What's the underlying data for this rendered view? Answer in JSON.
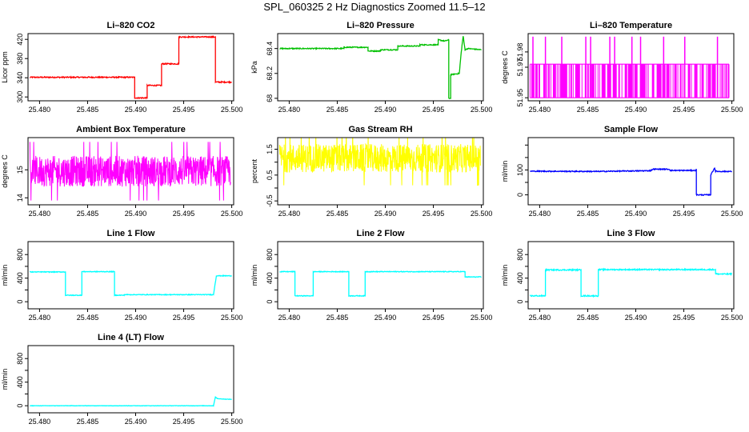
{
  "page": {
    "title": "SPL_060325  2 Hz Diagnostics Zoomed 11.5–12"
  },
  "chart_data": [
    {
      "type": "line",
      "title": "Li–820 CO2",
      "ylabel": "Licor ppm",
      "color": "#ff0000",
      "xlim": [
        25.4788,
        25.5002
      ],
      "ylim": [
        292,
        432
      ],
      "xticks": [
        "25.480",
        "25.485",
        "25.490",
        "25.495",
        "25.500"
      ],
      "yticks": [
        300,
        340,
        380,
        420
      ],
      "series": [
        {
          "x": [
            25.479,
            25.4899,
            25.4899,
            25.4912,
            25.4912,
            25.4927,
            25.4927,
            25.4945,
            25.4945,
            25.4983,
            25.4983,
            25.5
          ],
          "y": [
            341,
            341,
            298,
            298,
            324,
            324,
            369,
            369,
            425,
            425,
            331,
            331
          ]
        }
      ],
      "noise": 1.2
    },
    {
      "type": "line",
      "title": "Li–820 Pressure",
      "ylabel": "kPa",
      "color": "#00c000",
      "xlim": [
        25.4788,
        25.5002
      ],
      "ylim": [
        67.98,
        68.52
      ],
      "xticks": [
        "25.480",
        "25.485",
        "25.490",
        "25.495",
        "25.500"
      ],
      "yticks": [
        68.0,
        68.2,
        68.4
      ],
      "series": [
        {
          "x": [
            25.479,
            25.4857,
            25.4857,
            25.4882,
            25.4882,
            25.4895,
            25.4895,
            25.4913,
            25.4913,
            25.4936,
            25.4936,
            25.4955,
            25.4955,
            25.4962,
            25.4966,
            25.4966,
            25.4968,
            25.4968,
            25.4977,
            25.4979,
            25.4981,
            25.4983,
            25.4986,
            25.5
          ],
          "y": [
            68.4,
            68.4,
            68.41,
            68.41,
            68.38,
            68.38,
            68.39,
            68.39,
            68.42,
            68.42,
            68.43,
            68.43,
            68.47,
            68.46,
            68.47,
            68.0,
            68.0,
            68.19,
            68.2,
            68.37,
            68.5,
            68.39,
            68.4,
            68.39
          ]
        }
      ],
      "noise": 0.004
    },
    {
      "type": "spikes",
      "title": "Li–820 Temperature",
      "ylabel": "degrees C",
      "color": "#ff00ff",
      "xlim": [
        25.4788,
        25.5002
      ],
      "ylim": [
        51.948,
        51.992
      ],
      "xticks": [
        "25.480",
        "25.485",
        "25.490",
        "25.495",
        "25.500"
      ],
      "yticks": [
        51.95,
        51.97,
        51.98
      ],
      "low": 51.95,
      "high": 51.972,
      "top": 51.99,
      "xrange": [
        25.479,
        25.4997
      ],
      "top_spikes": [
        25.4793,
        25.4806,
        25.4823,
        25.4848,
        25.4853,
        25.4873,
        25.4878,
        25.4896,
        25.4905,
        25.4929,
        25.4951,
        25.4985
      ]
    },
    {
      "type": "noise",
      "title": "Ambient Box Temperature",
      "ylabel": "degrees C",
      "color": "#ff00ff",
      "xlim": [
        25.4788,
        25.5002
      ],
      "ylim": [
        13.75,
        16.15
      ],
      "xticks": [
        "25.480",
        "25.485",
        "25.490",
        "25.495",
        "25.500"
      ],
      "yticks": [
        14.0,
        15.0
      ],
      "mean": 14.95,
      "amp": 0.55,
      "xrange": [
        25.479,
        25.4999
      ]
    },
    {
      "type": "noise",
      "title": "Gas Stream RH",
      "ylabel": "percent",
      "color": "#ffff00",
      "xlim": [
        25.4788,
        25.5002
      ],
      "ylim": [
        -0.65,
        1.95
      ],
      "xticks": [
        "25.480",
        "25.485",
        "25.490",
        "25.495",
        "25.500"
      ],
      "yticks": [
        -0.5,
        0.5,
        1.5
      ],
      "yticks_secondary": [
        0.0,
        1.0
      ],
      "mean": 1.15,
      "amp": 0.55,
      "xrange": [
        25.479,
        25.4999
      ]
    },
    {
      "type": "line",
      "title": "Sample Flow",
      "ylabel": "ml/min",
      "color": "#0000ff",
      "xlim": [
        25.4788,
        25.5002
      ],
      "ylim": [
        -40,
        230
      ],
      "xticks": [
        "25.480",
        "25.485",
        "25.490",
        "25.495",
        "25.500"
      ],
      "yticks": [
        0,
        50,
        100,
        150,
        200
      ],
      "yticks_shown": [
        0,
        100
      ],
      "series": [
        {
          "x": [
            25.479,
            25.486,
            25.4915,
            25.4918,
            25.4935,
            25.4936,
            25.4962,
            25.4963,
            25.4963,
            25.4978,
            25.4978,
            25.4982,
            25.4983,
            25.4987,
            25.5
          ],
          "y": [
            95,
            94,
            97,
            103,
            103,
            98,
            98,
            104,
            0,
            0,
            80,
            108,
            95,
            94,
            94
          ]
        }
      ],
      "noise": 2
    },
    {
      "type": "line",
      "title": "Line 1 Flow",
      "ylabel": "ml/min",
      "color": "#00ffff",
      "xlim": [
        25.4788,
        25.5002
      ],
      "ylim": [
        -120,
        1020
      ],
      "xticks": [
        "25.480",
        "25.485",
        "25.490",
        "25.495",
        "25.500"
      ],
      "yticks": [
        0,
        200,
        400,
        600,
        800
      ],
      "yticks_shown": [
        0,
        400,
        800
      ],
      "series": [
        {
          "x": [
            25.479,
            25.4827,
            25.4827,
            25.4844,
            25.4844,
            25.4878,
            25.4878,
            25.4888,
            25.4888,
            25.4981,
            25.4984,
            25.5
          ],
          "y": [
            505,
            505,
            110,
            110,
            510,
            510,
            110,
            110,
            120,
            120,
            440,
            440
          ]
        }
      ],
      "noise": 6
    },
    {
      "type": "line",
      "title": "Line 2 Flow",
      "ylabel": "ml/min",
      "color": "#00ffff",
      "xlim": [
        25.4788,
        25.5002
      ],
      "ylim": [
        -120,
        1020
      ],
      "xticks": [
        "25.480",
        "25.485",
        "25.490",
        "25.495",
        "25.500"
      ],
      "yticks": [
        0,
        200,
        400,
        600,
        800
      ],
      "yticks_shown": [
        0,
        400,
        800
      ],
      "series": [
        {
          "x": [
            25.479,
            25.4806,
            25.4806,
            25.4825,
            25.4825,
            25.4862,
            25.4862,
            25.4879,
            25.4879,
            25.4983,
            25.4983,
            25.5
          ],
          "y": [
            510,
            510,
            100,
            100,
            510,
            510,
            100,
            100,
            510,
            510,
            420,
            420
          ]
        }
      ],
      "noise": 6
    },
    {
      "type": "line",
      "title": "Line 3 Flow",
      "ylabel": "ml/min",
      "color": "#00ffff",
      "xlim": [
        25.4788,
        25.5002
      ],
      "ylim": [
        -120,
        1020
      ],
      "xticks": [
        "25.480",
        "25.485",
        "25.490",
        "25.495",
        "25.500"
      ],
      "yticks": [
        0,
        200,
        400,
        600,
        800
      ],
      "yticks_shown": [
        0,
        400,
        800
      ],
      "series": [
        {
          "x": [
            25.479,
            25.4806,
            25.4806,
            25.4843,
            25.4843,
            25.4861,
            25.4861,
            25.4983,
            25.4983,
            25.5
          ],
          "y": [
            100,
            100,
            540,
            540,
            100,
            100,
            545,
            545,
            470,
            470
          ]
        }
      ],
      "noise": 10
    },
    {
      "type": "line",
      "title": "Line 4 (LT) Flow",
      "ylabel": "ml/min",
      "color": "#00ffff",
      "xlim": [
        25.4788,
        25.5002
      ],
      "ylim": [
        -120,
        1020
      ],
      "xticks": [
        "25.480",
        "25.485",
        "25.490",
        "25.495",
        "25.500"
      ],
      "yticks": [
        0,
        200,
        400,
        600,
        800
      ],
      "yticks_shown": [
        0,
        400,
        800
      ],
      "series": [
        {
          "x": [
            25.479,
            25.4981,
            25.4983,
            25.4985,
            25.4995,
            25.5
          ],
          "y": [
            0,
            0,
            150,
            120,
            110,
            110
          ]
        }
      ],
      "noise": 3
    }
  ]
}
